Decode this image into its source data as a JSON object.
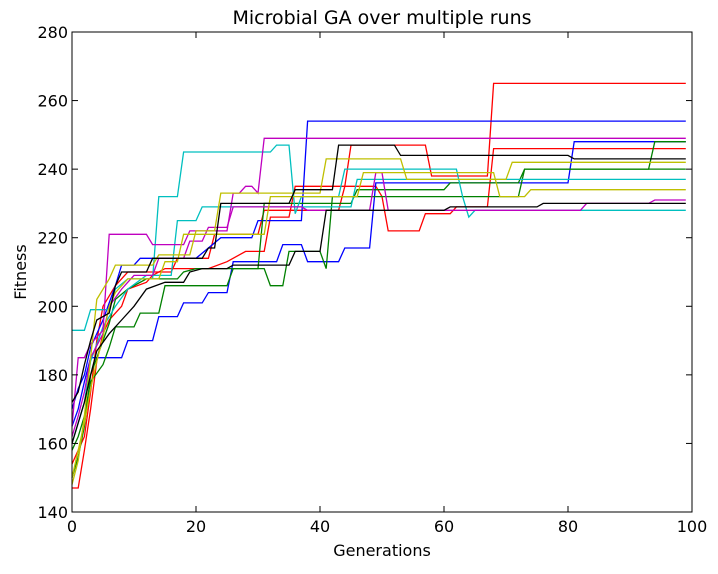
{
  "chart_data": {
    "type": "line",
    "title": "Microbial GA over multiple runs",
    "xlabel": "Generations",
    "ylabel": "Fitness",
    "xlim": [
      0,
      100
    ],
    "ylim": [
      140,
      280
    ],
    "xticks": [
      0,
      20,
      40,
      60,
      80,
      100
    ],
    "yticks": [
      140,
      160,
      180,
      200,
      220,
      240,
      260,
      280
    ],
    "grid": false,
    "legend": "none",
    "series": [
      {
        "color": "#ff0000",
        "points": [
          [
            0,
            147
          ],
          [
            1,
            147
          ],
          [
            2,
            158
          ],
          [
            3,
            170
          ],
          [
            4,
            184
          ],
          [
            5,
            192
          ],
          [
            6,
            196
          ],
          [
            7,
            198
          ],
          [
            8,
            200
          ],
          [
            9,
            205
          ],
          [
            12,
            207
          ],
          [
            13,
            209
          ],
          [
            15,
            211
          ],
          [
            22,
            211
          ],
          [
            25,
            213
          ],
          [
            28,
            216
          ],
          [
            31,
            216
          ],
          [
            32,
            226
          ],
          [
            35,
            226
          ],
          [
            36,
            235
          ],
          [
            44,
            235
          ],
          [
            45,
            247
          ],
          [
            57,
            247
          ],
          [
            58,
            238
          ],
          [
            67,
            238
          ],
          [
            68,
            265
          ],
          [
            99,
            265
          ]
        ]
      },
      {
        "color": "#ff0000",
        "points": [
          [
            0,
            154
          ],
          [
            1,
            158
          ],
          [
            2,
            162
          ],
          [
            3,
            175
          ],
          [
            4,
            190
          ],
          [
            5,
            200
          ],
          [
            7,
            206
          ],
          [
            9,
            210
          ],
          [
            16,
            210
          ],
          [
            17,
            214
          ],
          [
            22,
            214
          ],
          [
            23,
            221
          ],
          [
            30,
            221
          ],
          [
            31,
            228
          ],
          [
            43,
            228
          ],
          [
            44,
            235
          ],
          [
            49,
            235
          ],
          [
            50,
            232
          ],
          [
            51,
            222
          ],
          [
            56,
            222
          ],
          [
            57,
            227
          ],
          [
            61,
            227
          ],
          [
            62,
            229
          ],
          [
            67,
            229
          ],
          [
            68,
            246
          ],
          [
            99,
            246
          ]
        ]
      },
      {
        "color": "#0000ff",
        "points": [
          [
            0,
            170
          ],
          [
            1,
            176
          ],
          [
            2,
            180
          ],
          [
            3,
            188
          ],
          [
            5,
            196
          ],
          [
            7,
            206
          ],
          [
            8,
            212
          ],
          [
            10,
            212
          ],
          [
            11,
            214
          ],
          [
            20,
            214
          ],
          [
            24,
            220
          ],
          [
            29,
            220
          ],
          [
            30,
            225
          ],
          [
            37,
            225
          ],
          [
            38,
            254
          ],
          [
            99,
            254
          ]
        ]
      },
      {
        "color": "#0000ff",
        "points": [
          [
            0,
            165
          ],
          [
            1,
            170
          ],
          [
            2,
            178
          ],
          [
            3,
            185
          ],
          [
            8,
            185
          ],
          [
            9,
            190
          ],
          [
            13,
            190
          ],
          [
            14,
            197
          ],
          [
            17,
            197
          ],
          [
            18,
            201
          ],
          [
            21,
            201
          ],
          [
            22,
            204
          ],
          [
            25,
            204
          ],
          [
            26,
            213
          ],
          [
            33,
            213
          ],
          [
            34,
            218
          ],
          [
            37,
            218
          ],
          [
            38,
            213
          ],
          [
            43,
            213
          ],
          [
            44,
            217
          ],
          [
            48,
            217
          ],
          [
            49,
            236
          ],
          [
            80,
            236
          ],
          [
            81,
            248
          ],
          [
            99,
            248
          ]
        ]
      },
      {
        "color": "#008000",
        "points": [
          [
            0,
            158
          ],
          [
            1,
            162
          ],
          [
            2,
            168
          ],
          [
            3,
            178
          ],
          [
            5,
            183
          ],
          [
            6,
            188
          ],
          [
            7,
            194
          ],
          [
            10,
            194
          ],
          [
            11,
            198
          ],
          [
            14,
            198
          ],
          [
            15,
            206
          ],
          [
            25,
            206
          ],
          [
            26,
            211
          ],
          [
            31,
            211
          ],
          [
            32,
            206
          ],
          [
            34,
            206
          ],
          [
            35,
            216
          ],
          [
            40,
            216
          ],
          [
            41,
            211
          ],
          [
            42,
            232
          ],
          [
            50,
            232
          ],
          [
            51,
            232
          ],
          [
            72,
            232
          ],
          [
            73,
            240
          ],
          [
            93,
            240
          ],
          [
            94,
            248
          ],
          [
            99,
            248
          ]
        ]
      },
      {
        "color": "#008000",
        "points": [
          [
            0,
            150
          ],
          [
            1,
            156
          ],
          [
            2,
            165
          ],
          [
            3,
            180
          ],
          [
            5,
            190
          ],
          [
            6,
            195
          ],
          [
            7,
            202
          ],
          [
            9,
            205
          ],
          [
            12,
            208
          ],
          [
            17,
            208
          ],
          [
            18,
            210
          ],
          [
            20,
            211
          ],
          [
            30,
            211
          ],
          [
            31,
            230
          ],
          [
            45,
            230
          ],
          [
            46,
            234
          ],
          [
            60,
            234
          ],
          [
            61,
            236
          ],
          [
            72,
            236
          ],
          [
            73,
            240
          ],
          [
            99,
            240
          ]
        ]
      },
      {
        "color": "#00bfbf",
        "points": [
          [
            0,
            193
          ],
          [
            2,
            193
          ],
          [
            3,
            199
          ],
          [
            6,
            199
          ],
          [
            7,
            205
          ],
          [
            9,
            208
          ],
          [
            13,
            208
          ],
          [
            14,
            232
          ],
          [
            17,
            232
          ],
          [
            18,
            245
          ],
          [
            32,
            245
          ],
          [
            33,
            247
          ],
          [
            35,
            247
          ],
          [
            36,
            227
          ],
          [
            37,
            232
          ],
          [
            43,
            232
          ],
          [
            44,
            240
          ],
          [
            62,
            240
          ],
          [
            63,
            232
          ],
          [
            64,
            226
          ],
          [
            65,
            228
          ],
          [
            99,
            228
          ]
        ]
      },
      {
        "color": "#00bfbf",
        "points": [
          [
            0,
            160
          ],
          [
            1,
            166
          ],
          [
            2,
            172
          ],
          [
            3,
            184
          ],
          [
            5,
            194
          ],
          [
            7,
            200
          ],
          [
            9,
            205
          ],
          [
            12,
            209
          ],
          [
            16,
            209
          ],
          [
            17,
            225
          ],
          [
            20,
            225
          ],
          [
            21,
            229
          ],
          [
            35,
            229
          ],
          [
            36,
            229
          ],
          [
            45,
            229
          ],
          [
            46,
            237
          ],
          [
            99,
            237
          ]
        ]
      },
      {
        "color": "#bf00bf",
        "points": [
          [
            0,
            165
          ],
          [
            1,
            185
          ],
          [
            2,
            185
          ],
          [
            3,
            189
          ],
          [
            5,
            193
          ],
          [
            6,
            221
          ],
          [
            12,
            221
          ],
          [
            13,
            218
          ],
          [
            18,
            218
          ],
          [
            19,
            222
          ],
          [
            25,
            222
          ],
          [
            26,
            233
          ],
          [
            27,
            233
          ],
          [
            28,
            235
          ],
          [
            29,
            235
          ],
          [
            30,
            233
          ],
          [
            31,
            249
          ],
          [
            99,
            249
          ]
        ]
      },
      {
        "color": "#bf00bf",
        "points": [
          [
            0,
            162
          ],
          [
            1,
            168
          ],
          [
            2,
            175
          ],
          [
            3,
            185
          ],
          [
            5,
            192
          ],
          [
            6,
            200
          ],
          [
            8,
            205
          ],
          [
            10,
            209
          ],
          [
            13,
            209
          ],
          [
            14,
            214
          ],
          [
            18,
            214
          ],
          [
            19,
            219
          ],
          [
            21,
            219
          ],
          [
            22,
            223
          ],
          [
            25,
            223
          ],
          [
            26,
            229
          ],
          [
            37,
            229
          ],
          [
            38,
            228
          ],
          [
            48,
            228
          ],
          [
            49,
            239
          ],
          [
            50,
            239
          ],
          [
            51,
            228
          ],
          [
            79,
            228
          ],
          [
            80,
            228
          ],
          [
            82,
            228
          ],
          [
            83,
            230
          ],
          [
            93,
            230
          ],
          [
            94,
            231
          ],
          [
            99,
            231
          ]
        ]
      },
      {
        "color": "#bfbf00",
        "points": [
          [
            0,
            148
          ],
          [
            1,
            155
          ],
          [
            2,
            168
          ],
          [
            3,
            185
          ],
          [
            4,
            202
          ],
          [
            6,
            208
          ],
          [
            7,
            212
          ],
          [
            13,
            212
          ],
          [
            14,
            215
          ],
          [
            19,
            215
          ],
          [
            20,
            222
          ],
          [
            23,
            222
          ],
          [
            24,
            233
          ],
          [
            34,
            233
          ],
          [
            35,
            233
          ],
          [
            40,
            233
          ],
          [
            41,
            243
          ],
          [
            53,
            243
          ],
          [
            54,
            237
          ],
          [
            70,
            237
          ],
          [
            71,
            242
          ],
          [
            99,
            242
          ]
        ]
      },
      {
        "color": "#bfbf00",
        "points": [
          [
            0,
            150
          ],
          [
            1,
            158
          ],
          [
            2,
            166
          ],
          [
            3,
            176
          ],
          [
            4,
            184
          ],
          [
            5,
            191
          ],
          [
            6,
            200
          ],
          [
            7,
            204
          ],
          [
            9,
            208
          ],
          [
            14,
            208
          ],
          [
            15,
            213
          ],
          [
            17,
            213
          ],
          [
            18,
            221
          ],
          [
            31,
            221
          ],
          [
            32,
            232
          ],
          [
            46,
            232
          ],
          [
            47,
            239
          ],
          [
            68,
            239
          ],
          [
            69,
            232
          ],
          [
            73,
            232
          ],
          [
            74,
            234
          ],
          [
            99,
            234
          ]
        ]
      },
      {
        "color": "#000000",
        "points": [
          [
            0,
            172
          ],
          [
            1,
            175
          ],
          [
            2,
            183
          ],
          [
            3,
            190
          ],
          [
            4,
            196
          ],
          [
            6,
            198
          ],
          [
            7,
            206
          ],
          [
            8,
            210
          ],
          [
            12,
            210
          ],
          [
            13,
            214
          ],
          [
            21,
            214
          ],
          [
            22,
            217
          ],
          [
            23,
            217
          ],
          [
            24,
            230
          ],
          [
            35,
            230
          ],
          [
            36,
            234
          ],
          [
            42,
            234
          ],
          [
            43,
            247
          ],
          [
            52,
            247
          ],
          [
            53,
            244
          ],
          [
            80,
            244
          ],
          [
            81,
            243
          ],
          [
            99,
            243
          ]
        ]
      },
      {
        "color": "#000000",
        "points": [
          [
            0,
            160
          ],
          [
            1,
            166
          ],
          [
            2,
            172
          ],
          [
            3,
            180
          ],
          [
            4,
            187
          ],
          [
            6,
            192
          ],
          [
            8,
            196
          ],
          [
            10,
            200
          ],
          [
            12,
            205
          ],
          [
            15,
            207
          ],
          [
            18,
            207
          ],
          [
            19,
            210
          ],
          [
            21,
            211
          ],
          [
            25,
            211
          ],
          [
            26,
            212
          ],
          [
            35,
            212
          ],
          [
            36,
            216
          ],
          [
            40,
            216
          ],
          [
            41,
            228
          ],
          [
            60,
            228
          ],
          [
            61,
            229
          ],
          [
            75,
            229
          ],
          [
            76,
            230
          ],
          [
            99,
            230
          ]
        ]
      }
    ]
  }
}
